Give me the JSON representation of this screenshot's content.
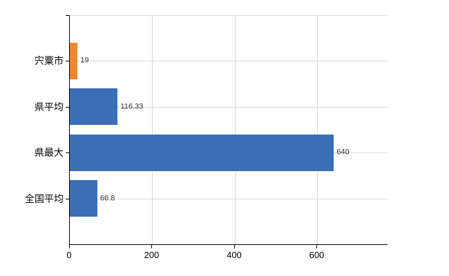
{
  "chart_data": {
    "type": "bar",
    "orientation": "horizontal",
    "title": "",
    "categories": [
      "宍粟市",
      "県平均",
      "県最大",
      "全国平均"
    ],
    "values": [
      19,
      116.33,
      640,
      66.8
    ],
    "value_labels": [
      "19",
      "116.33",
      "640",
      "66.8"
    ],
    "bar_colors": [
      "#ee8733",
      "#3c6eb4",
      "#3c6eb4",
      "#3c6eb4"
    ],
    "x_ticks": [
      0,
      200,
      400,
      600
    ],
    "x_tick_labels": [
      "0",
      "200",
      "400",
      "600"
    ],
    "xlim": [
      0,
      770
    ],
    "grid": true,
    "legend": "none"
  },
  "colors": {
    "background": "#ffffff",
    "axis": "#000000",
    "gridline": "#d9d9d9",
    "tick_mark": "#000000",
    "category_label": "#000000",
    "x_tick_label": "#000000",
    "value_label": "#333333"
  }
}
